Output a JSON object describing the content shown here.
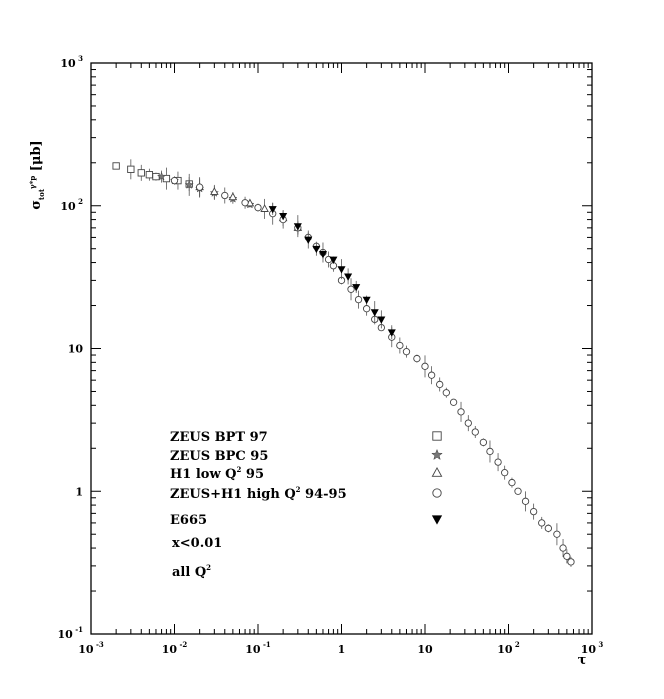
{
  "chart_data": {
    "type": "scatter",
    "title": "",
    "xlabel": "τ",
    "ylabel": "σ_tot^γ*p [μb]",
    "xscale": "log",
    "yscale": "log",
    "xlim": [
      0.001,
      1000
    ],
    "ylim": [
      0.1,
      1000
    ],
    "x_ticks": [
      {
        "base": "10",
        "exp": "-3",
        "value": 0.001
      },
      {
        "base": "10",
        "exp": "-2",
        "value": 0.01
      },
      {
        "base": "10",
        "exp": "-1",
        "value": 0.1
      },
      {
        "base": "1",
        "exp": "",
        "value": 1
      },
      {
        "base": "10",
        "exp": "",
        "value": 10
      },
      {
        "base": "10",
        "exp": "2",
        "value": 100
      },
      {
        "base": "10",
        "exp": "3",
        "value": 1000
      }
    ],
    "y_ticks": [
      {
        "base": "10",
        "exp": "-1",
        "value": 0.1
      },
      {
        "base": "1",
        "exp": "",
        "value": 1
      },
      {
        "base": "10",
        "exp": "",
        "value": 10
      },
      {
        "base": "10",
        "exp": "2",
        "value": 100
      },
      {
        "base": "10",
        "exp": "3",
        "value": 1000
      }
    ],
    "legend_placement": "lower-left",
    "legend": [
      {
        "label": "ZEUS BPT 97",
        "marker": "open-square"
      },
      {
        "label": "ZEUS BPC 95",
        "marker": "star"
      },
      {
        "label": "H1 low Q² 95",
        "marker": "open-triangle"
      },
      {
        "label": "ZEUS+H1 high Q² 94-95",
        "marker": "open-circle"
      },
      {
        "label": "E665",
        "marker": "filled-triangle-down"
      }
    ],
    "annotations": [
      "x<0.01",
      "all Q²"
    ],
    "series": [
      {
        "name": "ZEUS BPT 97",
        "marker": "open-square",
        "x": [
          0.002,
          0.003,
          0.004,
          0.005,
          0.006,
          0.008,
          0.011,
          0.015
        ],
        "y": [
          190,
          180,
          170,
          165,
          160,
          155,
          150,
          142
        ]
      },
      {
        "name": "ZEUS BPC 95",
        "marker": "star",
        "x": [
          0.007,
          0.01,
          0.015,
          0.02,
          0.03,
          0.05,
          0.08
        ],
        "y": [
          160,
          150,
          140,
          132,
          123,
          112,
          102
        ]
      },
      {
        "name": "H1 low Q² 95",
        "marker": "open-triangle",
        "x": [
          0.02,
          0.03,
          0.05,
          0.08,
          0.12,
          0.2,
          0.3
        ],
        "y": [
          135,
          125,
          115,
          104,
          95,
          82,
          70
        ]
      },
      {
        "name": "ZEUS+H1 high Q² 94-95",
        "marker": "open-circle",
        "x": [
          0.01,
          0.02,
          0.04,
          0.07,
          0.1,
          0.15,
          0.2,
          0.3,
          0.4,
          0.5,
          0.6,
          0.7,
          0.8,
          1.0,
          1.3,
          1.6,
          2.0,
          2.5,
          3.0,
          4.0,
          5.0,
          6.0,
          8.0,
          10,
          12,
          15,
          18,
          22,
          27,
          33,
          40,
          50,
          60,
          75,
          90,
          110,
          130,
          160,
          200,
          250,
          300,
          380,
          450,
          500,
          560
        ],
        "y": [
          150,
          135,
          118,
          105,
          97,
          88,
          80,
          70,
          60,
          52,
          47,
          42,
          38,
          30,
          26,
          22,
          19,
          16,
          14,
          12,
          10.5,
          9.5,
          8.5,
          7.5,
          6.5,
          5.6,
          4.9,
          4.2,
          3.6,
          3.0,
          2.6,
          2.2,
          1.9,
          1.6,
          1.35,
          1.15,
          1.0,
          0.85,
          0.72,
          0.6,
          0.55,
          0.5,
          0.4,
          0.35,
          0.32
        ]
      },
      {
        "name": "E665",
        "marker": "filled-triangle-down",
        "x": [
          0.15,
          0.2,
          0.3,
          0.4,
          0.5,
          0.6,
          0.8,
          1.0,
          1.2,
          1.5,
          2.0,
          2.5,
          3.0,
          4.0
        ],
        "y": [
          95,
          85,
          72,
          58,
          50,
          46,
          42,
          36,
          32,
          27,
          22,
          18,
          16,
          13
        ]
      }
    ]
  }
}
